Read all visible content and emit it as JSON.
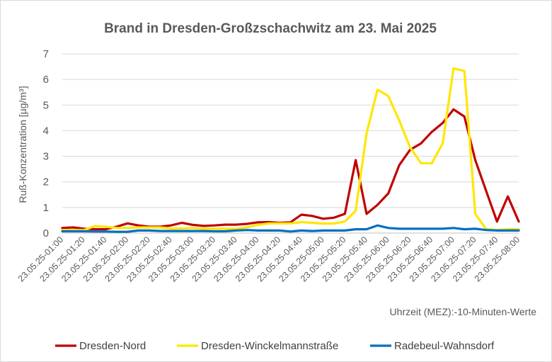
{
  "chart_data": {
    "type": "line",
    "title": "Brand in Dresden-Großzschachwitz am 23. Mai 2025",
    "ylabel": "Ruß-Konzentration [µg/m³]",
    "xlabel": "Uhrzeit (MEZ):-10-Minuten-Werte",
    "ylim": [
      0,
      7
    ],
    "yticks": [
      0,
      1,
      2,
      3,
      4,
      5,
      6,
      7
    ],
    "grid": "horizontal",
    "legend": "bottom",
    "x": [
      "23.05.25-01:00",
      "23.05.25-01:10",
      "23.05.25-01:20",
      "23.05.25-01:30",
      "23.05.25-01:40",
      "23.05.25-01:50",
      "23.05.25-02:00",
      "23.05.25-02:10",
      "23.05.25-02:20",
      "23.05.25-02:30",
      "23.05.25-02:40",
      "23.05.25-02:50",
      "23.05.25-03:00",
      "23.05.25-03:10",
      "23.05.25-03:20",
      "23.05.25-03:30",
      "23.05.25-03:40",
      "23.05.25-03:50",
      "23.05.25-04:00",
      "23.05.25-04:10",
      "23.05.25-04:20",
      "23.05.25-04:30",
      "23.05.25-04:40",
      "23.05.25-04:50",
      "23.05.25-05:00",
      "23.05.25-05:10",
      "23.05.25-05:20",
      "23.05.25-05:30",
      "23.05.25-05:40",
      "23.05.25-05:50",
      "23.05.25-06:00",
      "23.05.25-06:10",
      "23.05.25-06:20",
      "23.05.25-06:30",
      "23.05.25-06:40",
      "23.05.25-06:50",
      "23.05.25-07:00",
      "23.05.25-07:10",
      "23.05.25-07:20",
      "23.05.25-07:30",
      "23.05.25-07:40",
      "23.05.25-07:50",
      "23.05.25-08:00"
    ],
    "x_tick_labels": [
      "23.05.25-01:00",
      "23.05.25-01:20",
      "23.05.25-01:40",
      "23.05.25-02:00",
      "23.05.25-02:20",
      "23.05.25-02:40",
      "23.05.25-03:00",
      "23.05.25-03:20",
      "23.05.25-03:40",
      "23.05.25-04:00",
      "23.05.25-04:20",
      "23.05.25-04:40",
      "23.05.25-05:00",
      "23.05.25-05:20",
      "23.05.25-05:40",
      "23.05.25-06:00",
      "23.05.25-06:20",
      "23.05.25-06:40",
      "23.05.25-07:00",
      "23.05.25-07:20",
      "23.05.25-07:40",
      "23.05.25-08:00"
    ],
    "series": [
      {
        "name": "Dresden-Nord",
        "color": "#c00000",
        "values": [
          0.2,
          0.22,
          0.17,
          0.15,
          0.15,
          0.25,
          0.38,
          0.3,
          0.25,
          0.25,
          0.3,
          0.4,
          0.32,
          0.28,
          0.3,
          0.33,
          0.33,
          0.36,
          0.42,
          0.43,
          0.4,
          0.42,
          0.72,
          0.67,
          0.56,
          0.6,
          0.75,
          2.85,
          0.75,
          1.1,
          1.55,
          2.65,
          3.25,
          3.5,
          3.95,
          4.3,
          4.83,
          4.55,
          2.85,
          1.65,
          0.45,
          1.43,
          0.45
        ]
      },
      {
        "name": "Dresden-Winckelmannstraße",
        "color": "#ffe600",
        "values": [
          0.12,
          0.12,
          0.12,
          0.27,
          0.25,
          0.2,
          0.2,
          0.22,
          0.22,
          0.22,
          0.18,
          0.18,
          0.2,
          0.17,
          0.17,
          0.17,
          0.17,
          0.22,
          0.32,
          0.38,
          0.38,
          0.38,
          0.43,
          0.4,
          0.37,
          0.37,
          0.45,
          0.87,
          3.9,
          5.6,
          5.35,
          4.4,
          3.35,
          2.73,
          2.72,
          3.5,
          6.43,
          6.33,
          0.75,
          0.15,
          0.12,
          0.15,
          0.15
        ]
      },
      {
        "name": "Radebeul-Wahnsdorf",
        "color": "#0070c0",
        "values": [
          0.07,
          0.07,
          0.07,
          0.06,
          0.06,
          0.05,
          0.05,
          0.1,
          0.1,
          0.08,
          0.08,
          0.08,
          0.08,
          0.08,
          0.07,
          0.07,
          0.1,
          0.12,
          0.1,
          0.1,
          0.1,
          0.06,
          0.1,
          0.08,
          0.1,
          0.1,
          0.1,
          0.15,
          0.15,
          0.3,
          0.2,
          0.17,
          0.17,
          0.17,
          0.17,
          0.17,
          0.2,
          0.15,
          0.17,
          0.12,
          0.1,
          0.1,
          0.1
        ]
      }
    ]
  }
}
